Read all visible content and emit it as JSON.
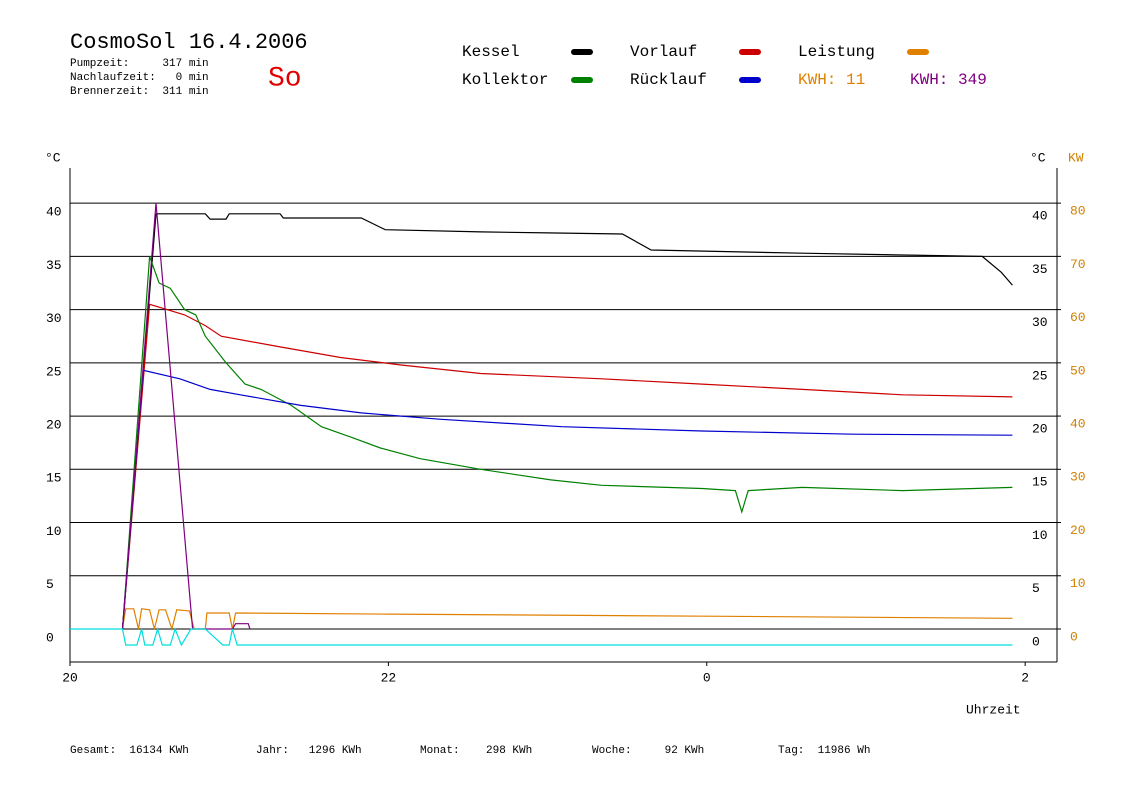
{
  "chart_data": {
    "type": "line",
    "title": "CosmoSol 16.4.2006",
    "info": [
      "Pumpzeit:     317 min",
      "Nachlaufzeit:   0 min",
      "Brennerzeit:  311 min"
    ],
    "day": "So",
    "y_label": "°C",
    "y2_label_temp": "°C",
    "y2_label": "KW",
    "x_label": "Uhrzeit",
    "legend_notes": [
      "KWH: 11",
      "KWH: 349"
    ],
    "footer": [
      "Gesamt:  16134 KWh",
      "Jahr:   1296 KWh",
      "Monat:    298 KWh",
      "Woche:     92 KWh",
      "Tag:  11986 Wh"
    ],
    "xlim": [
      20,
      26.2
    ],
    "xticks": [
      20,
      22,
      {
        "value": 24,
        "label": "0"
      },
      {
        "value": 26,
        "label": "2"
      }
    ],
    "ylim": [
      -3.1,
      43.3
    ],
    "yticks": [
      0,
      5,
      10,
      15,
      20,
      25,
      30,
      35,
      40
    ],
    "y2lim": [
      -6.2,
      86.6
    ],
    "y2ticks": [
      0,
      10,
      20,
      30,
      40,
      50,
      60,
      70,
      80
    ],
    "grid": true,
    "series": [
      {
        "name": "Kessel",
        "color": "#000000",
        "x": [
          20.33,
          20.54,
          20.85,
          20.88,
          20.98,
          21.0,
          21.32,
          21.34,
          21.83,
          21.98,
          22.58,
          23.0,
          23.47,
          23.65,
          24.6,
          25.73,
          25.85,
          25.92
        ],
        "values": [
          0,
          39,
          39,
          38.5,
          38.5,
          39,
          39,
          38.6,
          38.6,
          37.5,
          37.3,
          37.2,
          37.1,
          35.6,
          35.3,
          35.0,
          33.5,
          32.3
        ]
      },
      {
        "name": "Vorlauf",
        "color": "#cc0000",
        "x": [
          20.33,
          20.5,
          20.72,
          20.85,
          20.95,
          21.32,
          21.7,
          22.08,
          22.58,
          23.34,
          23.97,
          24.6,
          25.23,
          25.92
        ],
        "values": [
          0,
          30.5,
          29.5,
          28.5,
          27.5,
          26.5,
          25.5,
          24.8,
          24.0,
          23.5,
          23.0,
          22.5,
          22.0,
          21.8
        ]
      },
      {
        "name": "Leistung",
        "color": "#e08000",
        "axis": "y2",
        "x": [
          20.33,
          20.35,
          20.4,
          20.43,
          20.45,
          20.5,
          20.53,
          20.56,
          20.6,
          20.64,
          20.67,
          20.75,
          20.78,
          20.85,
          20.86,
          21.0,
          21.02,
          21.04,
          22.0,
          24.0,
          25.92
        ],
        "values": [
          0,
          3.8,
          3.8,
          0,
          3.8,
          3.6,
          0,
          3.6,
          3.6,
          0,
          3.6,
          3.4,
          0,
          0,
          3.0,
          3.0,
          0,
          3.0,
          2.8,
          2.4,
          2.0
        ]
      },
      {
        "name": "Kollektor",
        "color": "#008000",
        "x": [
          20.33,
          20.5,
          20.56,
          20.63,
          20.72,
          20.79,
          20.85,
          20.98,
          21.1,
          21.2,
          21.39,
          21.58,
          21.77,
          21.95,
          22.2,
          22.58,
          23.02,
          23.34,
          23.97,
          24.18,
          24.22,
          24.26,
          24.6,
          25.23,
          25.92
        ],
        "values": [
          0,
          35,
          32.5,
          32,
          30,
          29.5,
          27.5,
          25,
          23,
          22.5,
          21,
          19,
          18,
          17,
          16,
          15,
          14,
          13.5,
          13.2,
          13,
          11,
          13,
          13.3,
          13,
          13.3
        ]
      },
      {
        "name": "Rücklauf",
        "color": "#0000cc",
        "x": [
          20.33,
          20.46,
          20.69,
          20.88,
          21.07,
          21.45,
          21.83,
          22.33,
          23.09,
          23.97,
          24.92,
          25.92
        ],
        "values": [
          0,
          24.3,
          23.5,
          22.5,
          22,
          21,
          20.3,
          19.7,
          19,
          18.6,
          18.3,
          18.2
        ]
      },
      {
        "color": "#800080",
        "x": [
          20.33,
          20.54,
          20.77,
          21.02,
          21.04,
          21.12,
          21.13
        ],
        "values": [
          0,
          40,
          0,
          0,
          0.5,
          0.5,
          0
        ]
      },
      {
        "color": "#00dddd",
        "x": [
          20,
          20.33,
          20.35,
          20.42,
          20.45,
          20.47,
          20.52,
          20.55,
          20.58,
          20.63,
          20.66,
          20.7,
          20.76,
          20.85,
          20.96,
          21.0,
          21.02,
          21.05,
          25.92
        ],
        "values": [
          0,
          0,
          -1.5,
          -1.5,
          0,
          -1.5,
          -1.5,
          0,
          -1.5,
          -1.5,
          0,
          -1.5,
          0,
          0,
          -1.5,
          -1.5,
          0,
          -1.5,
          -1.5
        ]
      }
    ]
  }
}
